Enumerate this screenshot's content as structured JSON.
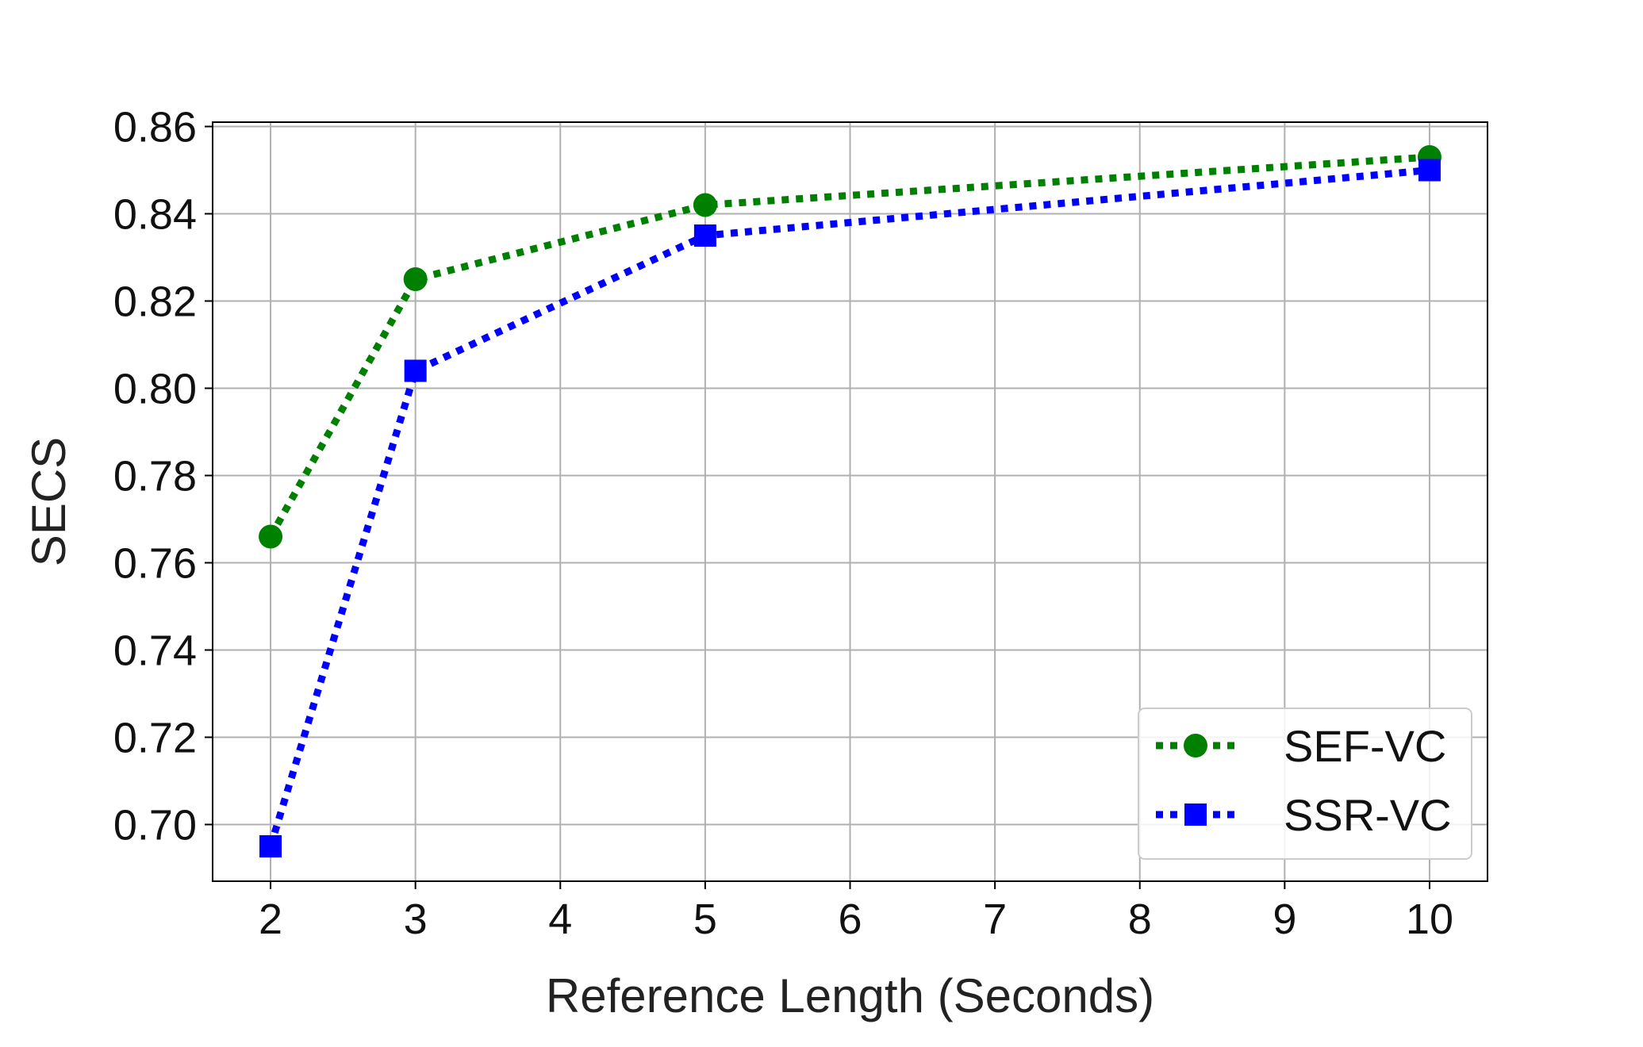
{
  "chart_data": {
    "type": "line",
    "title": "",
    "xlabel": "Reference Length (Seconds)",
    "ylabel": "SECS",
    "xlim": [
      1.6,
      10.4
    ],
    "ylim": [
      0.687,
      0.861
    ],
    "xticks": [
      2,
      3,
      4,
      5,
      6,
      7,
      8,
      9,
      10
    ],
    "xtick_labels": [
      "2",
      "3",
      "4",
      "5",
      "6",
      "7",
      "8",
      "9",
      "10"
    ],
    "yticks": [
      0.7,
      0.72,
      0.74,
      0.76,
      0.78,
      0.8,
      0.82,
      0.84,
      0.86
    ],
    "ytick_labels": [
      "0.70",
      "0.72",
      "0.74",
      "0.76",
      "0.78",
      "0.80",
      "0.82",
      "0.84",
      "0.86"
    ],
    "grid": true,
    "legend_position": "lower-right",
    "series": [
      {
        "name": "SEF-VC",
        "color": "#008000",
        "marker": "circle",
        "linestyle": "dotted",
        "x": [
          2,
          3,
          5,
          10
        ],
        "y": [
          0.766,
          0.825,
          0.842,
          0.853
        ]
      },
      {
        "name": "SSR-VC",
        "color": "#0000ff",
        "marker": "square",
        "linestyle": "dotted",
        "x": [
          2,
          3,
          5,
          10
        ],
        "y": [
          0.695,
          0.804,
          0.835,
          0.85
        ]
      }
    ]
  }
}
